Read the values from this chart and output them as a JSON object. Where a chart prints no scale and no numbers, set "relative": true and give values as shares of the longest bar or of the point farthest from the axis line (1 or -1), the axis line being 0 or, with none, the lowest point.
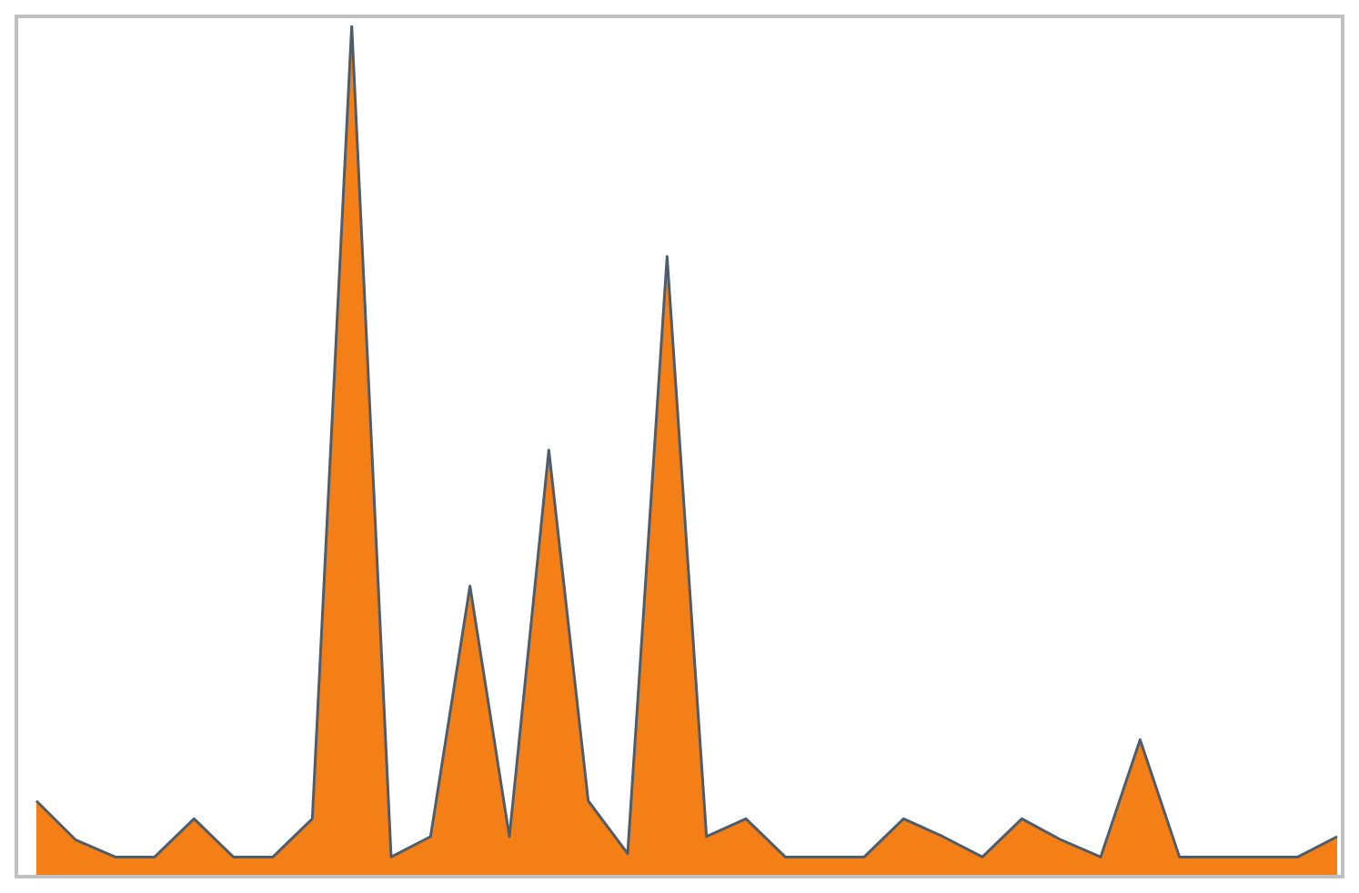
{
  "chart_data": {
    "type": "area",
    "relative": true,
    "categories": [
      null,
      null,
      null,
      null,
      null,
      null,
      null,
      null,
      null,
      null,
      null,
      null,
      null,
      null,
      null,
      null,
      null,
      null,
      null,
      null,
      null,
      null,
      null,
      null,
      null,
      null,
      null,
      null,
      null,
      null,
      null,
      null,
      null,
      null
    ],
    "series": [
      {
        "color": "#f57f17",
        "values": [
          0.087,
          0.041,
          0.021,
          0.021,
          0.066,
          0.021,
          0.021,
          0.066,
          1,
          0.021,
          0.045,
          0.34,
          0.045,
          0.5,
          0.087,
          0.025,
          0.728,
          0.045,
          0.066,
          0.021,
          0.021,
          0.021,
          0.066,
          0.045,
          0.021,
          0.066,
          0.041,
          0.021,
          0.159,
          0.021,
          0.021,
          0.021,
          0.021,
          0.045
        ]
      }
    ],
    "grid": false,
    "legend": false
  }
}
